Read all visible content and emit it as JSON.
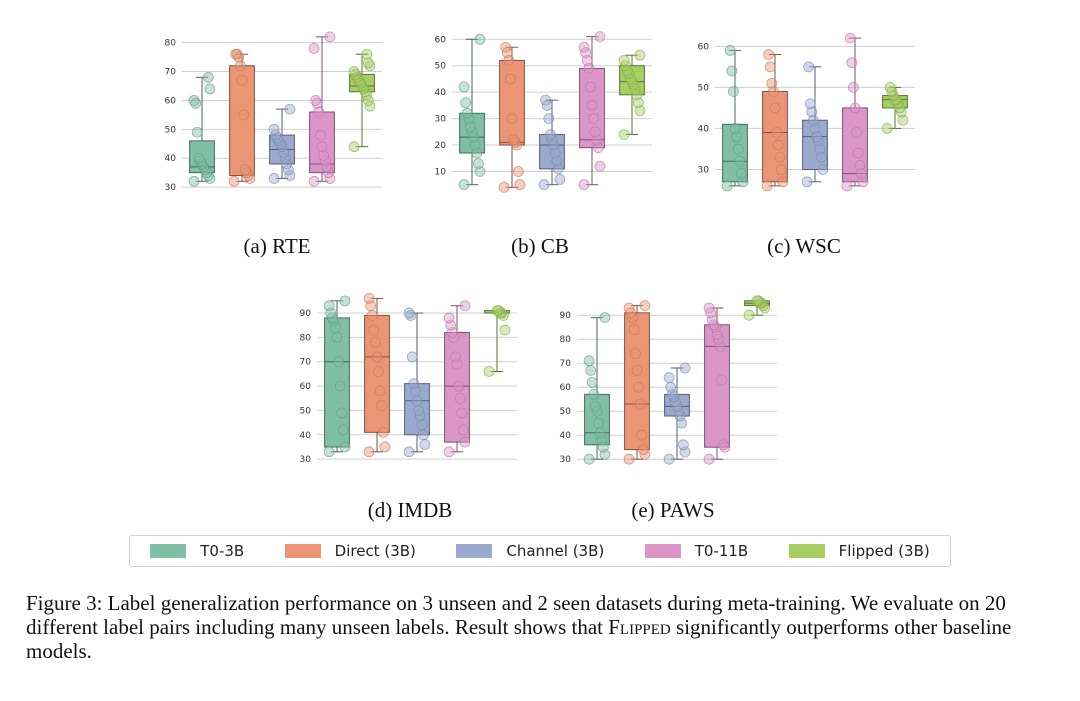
{
  "chart_data": [
    {
      "type": "box",
      "caption": "(a) RTE",
      "yticks": [
        30,
        40,
        50,
        60,
        70,
        80
      ],
      "ylim": [
        29,
        83
      ],
      "series": [
        {
          "name": "T0-3B",
          "q1": 35,
          "median": 37,
          "q3": 46,
          "min": 32,
          "max": 68,
          "points": [
            32,
            33,
            34,
            35,
            36,
            37,
            38,
            39,
            40,
            49,
            59,
            60,
            64,
            68
          ]
        },
        {
          "name": "Direct (3B)",
          "q1": 34,
          "median": 34,
          "q3": 72,
          "min": 32,
          "max": 76,
          "points": [
            32,
            33,
            34,
            35,
            36,
            55,
            67,
            72,
            75,
            76,
            76
          ]
        },
        {
          "name": "Channel (3B)",
          "q1": 38,
          "median": 43,
          "q3": 48,
          "min": 33,
          "max": 57,
          "points": [
            33,
            34,
            36,
            38,
            40,
            42,
            44,
            45,
            46,
            47,
            48,
            50,
            57
          ]
        },
        {
          "name": "T0-11B",
          "q1": 35,
          "median": 38,
          "q3": 56,
          "min": 32,
          "max": 82,
          "points": [
            32,
            33,
            35,
            37,
            39,
            41,
            44,
            48,
            56,
            59,
            60,
            78,
            82
          ]
        },
        {
          "name": "Flipped (3B)",
          "q1": 63,
          "median": 65,
          "q3": 69,
          "min": 44,
          "max": 76,
          "points": [
            44,
            58,
            60,
            62,
            63,
            64,
            65,
            66,
            67,
            68,
            69,
            70,
            72,
            73,
            76
          ]
        }
      ]
    },
    {
      "type": "box",
      "caption": "(b) CB",
      "yticks": [
        10,
        20,
        30,
        40,
        50,
        60
      ],
      "ylim": [
        3,
        62
      ],
      "series": [
        {
          "name": "T0-3B",
          "q1": 17,
          "median": 23,
          "q3": 32,
          "min": 5,
          "max": 60,
          "points": [
            5,
            10,
            13,
            17,
            20,
            23,
            25,
            27,
            30,
            32,
            36,
            42,
            60
          ]
        },
        {
          "name": "Direct (3B)",
          "q1": 20,
          "median": 21,
          "q3": 52,
          "min": 4,
          "max": 57,
          "points": [
            4,
            5,
            10,
            20,
            21,
            22,
            30,
            45,
            52,
            55,
            57
          ]
        },
        {
          "name": "Channel (3B)",
          "q1": 11,
          "median": 20,
          "q3": 24,
          "min": 5,
          "max": 37,
          "points": [
            5,
            7,
            11,
            14,
            17,
            20,
            22,
            24,
            30,
            35,
            37
          ]
        },
        {
          "name": "T0-11B",
          "q1": 19,
          "median": 22,
          "q3": 49,
          "min": 5,
          "max": 61,
          "points": [
            5,
            12,
            19,
            22,
            25,
            30,
            35,
            42,
            49,
            52,
            55,
            57,
            61
          ]
        },
        {
          "name": "Flipped (3B)",
          "q1": 39,
          "median": 44,
          "q3": 50,
          "min": 24,
          "max": 54,
          "points": [
            24,
            33,
            36,
            39,
            41,
            43,
            44,
            45,
            47,
            48,
            50,
            52,
            54
          ]
        }
      ]
    },
    {
      "type": "box",
      "caption": "(c) WSC",
      "yticks": [
        30,
        40,
        50,
        60
      ],
      "ylim": [
        25,
        63
      ],
      "series": [
        {
          "name": "T0-3B",
          "q1": 27,
          "median": 32,
          "q3": 41,
          "min": 26,
          "max": 59,
          "points": [
            26,
            27,
            29,
            32,
            35,
            38,
            40,
            49,
            54,
            59
          ]
        },
        {
          "name": "Direct (3B)",
          "q1": 27,
          "median": 39,
          "q3": 49,
          "min": 26,
          "max": 58,
          "points": [
            26,
            27,
            30,
            33,
            36,
            39,
            45,
            49,
            51,
            55,
            58
          ]
        },
        {
          "name": "Channel (3B)",
          "q1": 30,
          "median": 38,
          "q3": 42,
          "min": 27,
          "max": 55,
          "points": [
            27,
            30,
            33,
            35,
            37,
            38,
            40,
            42,
            44,
            46,
            55
          ]
        },
        {
          "name": "T0-11B",
          "q1": 27,
          "median": 29,
          "q3": 45,
          "min": 26,
          "max": 62,
          "points": [
            26,
            27,
            29,
            31,
            34,
            39,
            45,
            50,
            56,
            62
          ]
        },
        {
          "name": "Flipped (3B)",
          "q1": 45,
          "median": 47,
          "q3": 48,
          "min": 40,
          "max": 50,
          "points": [
            40,
            42,
            44,
            45,
            46,
            47,
            47,
            48,
            49,
            50
          ]
        }
      ]
    },
    {
      "type": "box",
      "caption": "(d) IMDB",
      "yticks": [
        30,
        40,
        50,
        60,
        70,
        80,
        90
      ],
      "ylim": [
        28,
        97
      ],
      "series": [
        {
          "name": "T0-3B",
          "q1": 35,
          "median": 70,
          "q3": 88,
          "min": 33,
          "max": 95,
          "points": [
            33,
            35,
            42,
            49,
            60,
            70,
            80,
            84,
            87,
            88,
            90,
            93,
            95
          ]
        },
        {
          "name": "Direct (3B)",
          "q1": 41,
          "median": 72,
          "q3": 89,
          "min": 33,
          "max": 96,
          "points": [
            33,
            35,
            41,
            52,
            58,
            66,
            72,
            78,
            83,
            89,
            93,
            96
          ]
        },
        {
          "name": "Channel (3B)",
          "q1": 40,
          "median": 54,
          "q3": 61,
          "min": 33,
          "max": 90,
          "points": [
            33,
            36,
            40,
            44,
            48,
            50,
            54,
            58,
            61,
            72,
            89,
            90
          ]
        },
        {
          "name": "T0-11B",
          "q1": 37,
          "median": 60,
          "q3": 82,
          "min": 33,
          "max": 93,
          "points": [
            33,
            37,
            42,
            49,
            55,
            60,
            69,
            72,
            80,
            82,
            85,
            88,
            93
          ]
        },
        {
          "name": "Flipped (3B)",
          "q1": 90,
          "median": 90,
          "q3": 91,
          "min": 66,
          "max": 91,
          "points": [
            66,
            83,
            89,
            90,
            90,
            91,
            91
          ]
        }
      ]
    },
    {
      "type": "box",
      "caption": "(e) PAWS",
      "yticks": [
        30,
        40,
        50,
        60,
        70,
        80,
        90
      ],
      "ylim": [
        28,
        98
      ],
      "series": [
        {
          "name": "T0-3B",
          "q1": 36,
          "median": 41,
          "q3": 57,
          "min": 30,
          "max": 89,
          "points": [
            30,
            32,
            35,
            38,
            41,
            45,
            50,
            52,
            57,
            62,
            67,
            71,
            89
          ]
        },
        {
          "name": "Direct (3B)",
          "q1": 34,
          "median": 53,
          "q3": 91,
          "min": 30,
          "max": 94,
          "points": [
            30,
            32,
            34,
            40,
            53,
            60,
            67,
            74,
            84,
            89,
            91,
            93,
            94
          ]
        },
        {
          "name": "Channel (3B)",
          "q1": 48,
          "median": 52,
          "q3": 57,
          "min": 30,
          "max": 68,
          "points": [
            30,
            33,
            36,
            45,
            48,
            50,
            52,
            54,
            56,
            57,
            60,
            64,
            68
          ]
        },
        {
          "name": "T0-11B",
          "q1": 35,
          "median": 77,
          "q3": 86,
          "min": 30,
          "max": 93,
          "points": [
            30,
            35,
            36,
            63,
            77,
            80,
            82,
            85,
            86,
            88,
            91,
            93
          ]
        },
        {
          "name": "Flipped (3B)",
          "q1": 94,
          "median": 95,
          "q3": 96,
          "min": 90,
          "max": 96,
          "points": [
            90,
            93,
            94,
            95,
            95,
            96,
            96
          ]
        }
      ]
    }
  ],
  "legend": [
    {
      "label": "T0-3B",
      "color": "#7fbfa6"
    },
    {
      "label": "Direct (3B)",
      "color": "#ec9574"
    },
    {
      "label": "Channel (3B)",
      "color": "#9aa9ce"
    },
    {
      "label": "T0-11B",
      "color": "#dc95c8"
    },
    {
      "label": "Flipped (3B)",
      "color": "#a6cf62"
    }
  ],
  "caption": {
    "prefix": "Figure 3: Label generalization performance on 3 unseen and 2 seen datasets during meta-training. We evaluate on 20 different label pairs including many unseen labels. Result shows that ",
    "model": "Flipped",
    "suffix": " significantly outperforms other baseline models."
  }
}
